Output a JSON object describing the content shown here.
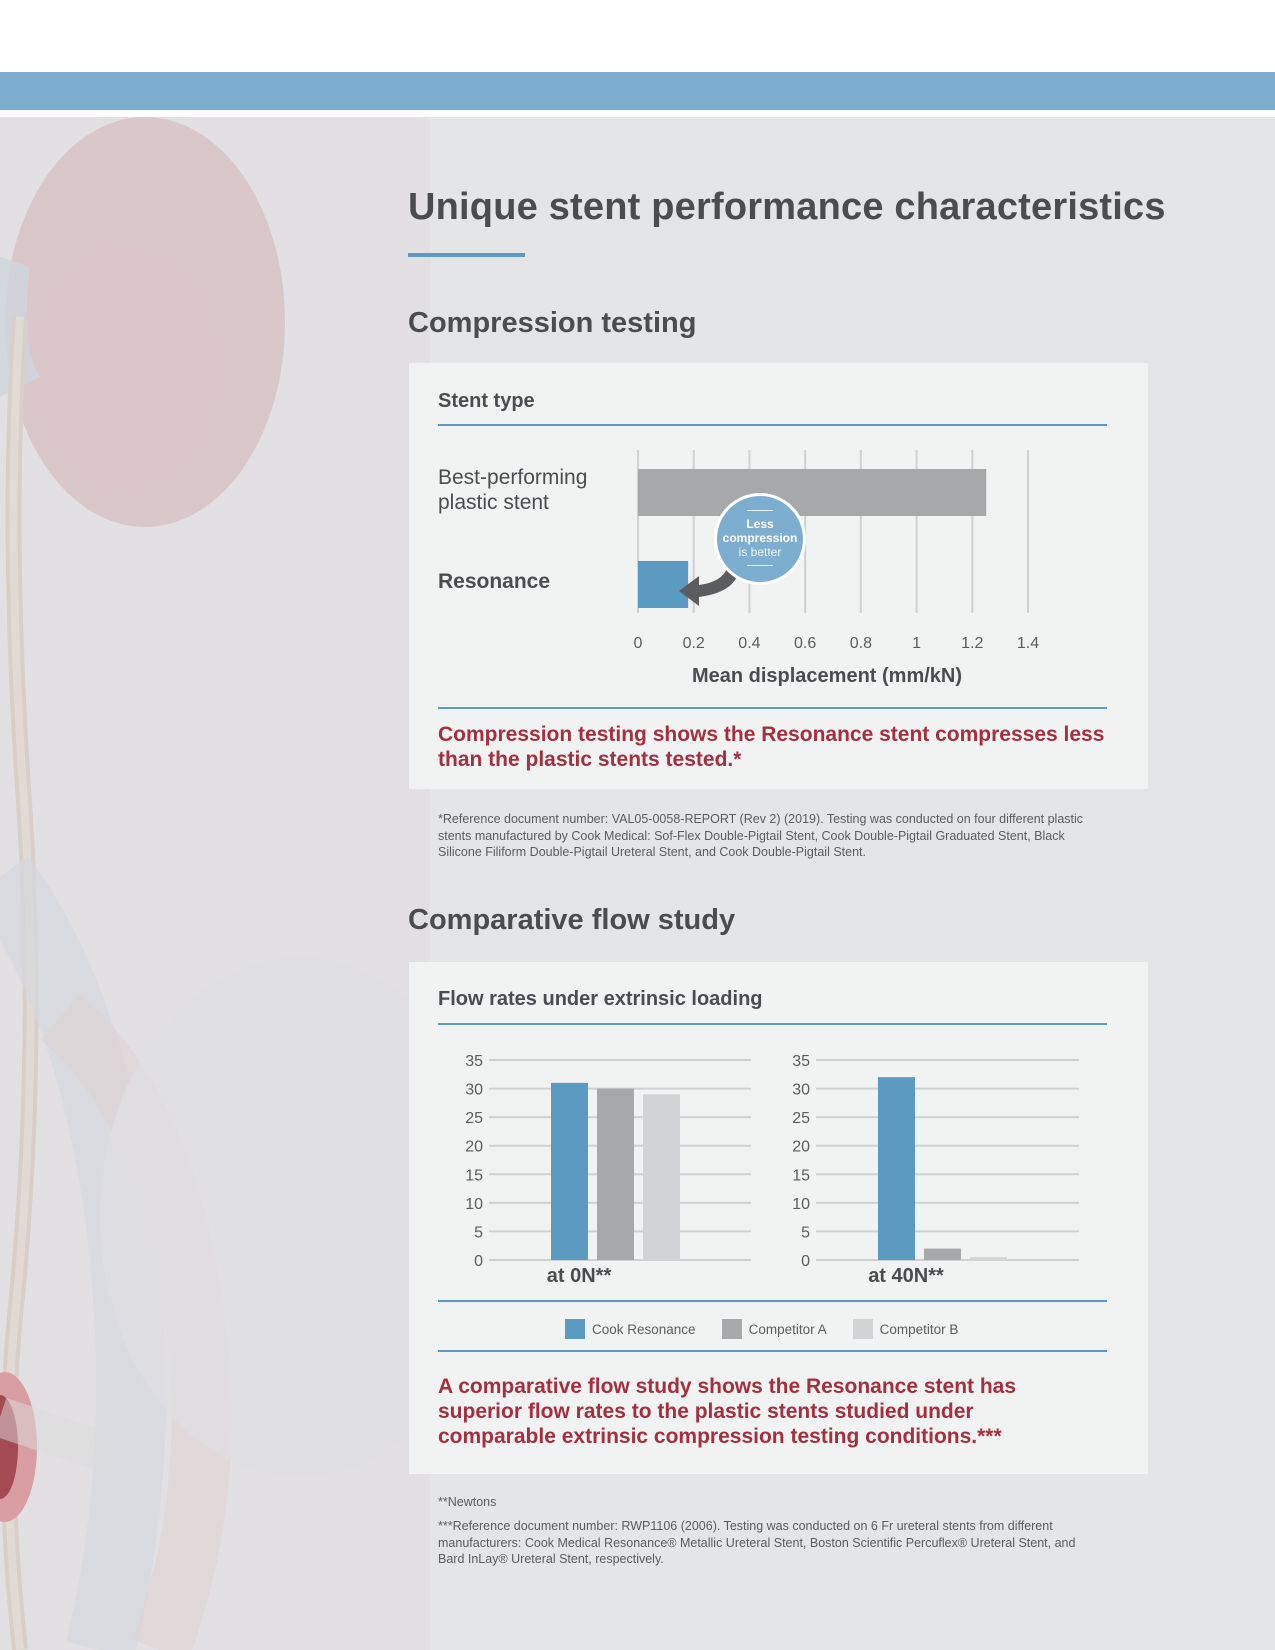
{
  "page": {
    "title": "Unique stent performance characteristics",
    "colors": {
      "accent_blue": "#5b9bc2",
      "header_band": "#7eaecf",
      "highlight_red": "#a3303f",
      "panel": "#f1f2f2",
      "background": "#e4e5e7"
    }
  },
  "compression": {
    "section_title": "Compression testing",
    "card_title": "Stent type",
    "rows": [
      "Best-performing plastic stent",
      "Resonance"
    ],
    "bubble": {
      "line1": "Less",
      "line2": "compression",
      "line3": "is better"
    },
    "conclusion": "Compression testing shows the Resonance stent compresses less than the plastic stents tested.*",
    "footnote": "*Reference document number: VAL05-0058-REPORT (Rev 2) (2019). Testing was conducted on four different plastic stents manufactured by Cook Medical: Sof-Flex Double-Pigtail Stent, Cook Double-Pigtail Graduated Stent, Black Silicone Filiform Double-Pigtail Ureteral Stent, and Cook Double-Pigtail Stent."
  },
  "flow": {
    "section_title": "Comparative flow study",
    "card_title": "Flow rates under extrinsic loading",
    "conclusion": "A comparative flow study shows the Resonance stent has superior flow rates to the plastic stents studied under comparable extrinsic compression testing conditions.***",
    "footnote1": "**Newtons",
    "footnote2": "***Reference document number: RWP1106 (2006). Testing was conducted on 6 Fr ureteral stents from different manufacturers: Cook Medical Resonance® Metallic Ureteral Stent, Boston Scientific Percuflex® Ureteral Stent, and Bard InLay® Ureteral Stent, respectively."
  },
  "chart_data": [
    {
      "type": "bar",
      "orientation": "horizontal",
      "categories": [
        "Best-performing plastic stent",
        "Resonance"
      ],
      "values": [
        1.25,
        0.18
      ],
      "colors": [
        "#a7a8aa",
        "#5b9bc2"
      ],
      "xlabel": "Mean displacement (mm/kN)",
      "xlim": [
        0,
        1.4
      ],
      "xticks": [
        "0",
        "0.2",
        "0.4",
        "0.6",
        "0.8",
        "1",
        "1.2",
        "1.4"
      ],
      "grid": true
    },
    {
      "type": "bar",
      "xlabel": "at 0N**",
      "categories": [
        "Cook Resonance",
        "Competitor A",
        "Competitor B"
      ],
      "values": [
        31,
        30,
        29
      ],
      "ylim": [
        0,
        35
      ],
      "yticks": [
        "0",
        "5",
        "10",
        "15",
        "20",
        "25",
        "30",
        "35"
      ],
      "grid": true
    },
    {
      "type": "bar",
      "xlabel": "at 40N**",
      "categories": [
        "Cook Resonance",
        "Competitor A",
        "Competitor B"
      ],
      "values": [
        32,
        2,
        0.5
      ],
      "ylim": [
        0,
        35
      ],
      "yticks": [
        "0",
        "5",
        "10",
        "15",
        "20",
        "25",
        "30",
        "35"
      ],
      "grid": true
    }
  ],
  "legend": [
    {
      "label": "Cook Resonance",
      "color": "#5b9bc2"
    },
    {
      "label": "Competitor A",
      "color": "#a7a8aa"
    },
    {
      "label": "Competitor B",
      "color": "#d2d3d4"
    }
  ]
}
